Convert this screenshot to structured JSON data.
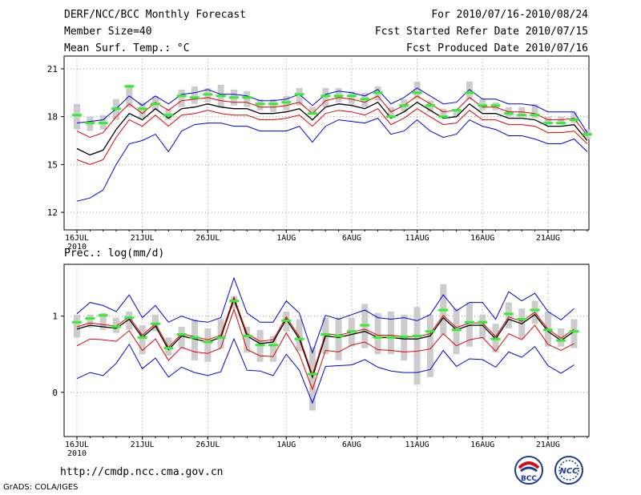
{
  "header": {
    "title": "DERF/NCC/BCC Monthly Forecast",
    "member_size": "Member Size=40",
    "variable": "Mean Surf. Temp.: °C",
    "forecast_period": "For 2010/07/16-2010/08/24",
    "fcst_started": "Fcst Started Refer Date 2010/07/15",
    "fcst_produced": "Fcst Produced Date 2010/07/16"
  },
  "panel2_title": "Prec.: log(mm/d)",
  "footer": {
    "url": "http://cmdp.ncc.cma.gov.cn",
    "grads": "GrADS: COLA/IGES",
    "logo1_text": "BCC",
    "logo2_text": "NCC"
  },
  "colors": {
    "mean": "#000000",
    "red_band": "#e00000",
    "blue_envelope": "#0000dd",
    "box": "#cccccc",
    "median": "#33ee33",
    "grid": "#999999"
  },
  "chart_data": [
    {
      "type": "line",
      "title": "Mean Surf. Temp.: °C",
      "x_tick_labels": [
        "16JUL",
        "21JUL",
        "26JUL",
        "1AUG",
        "6AUG",
        "11AUG",
        "16AUG",
        "21AUG"
      ],
      "x_year_label": "2010",
      "ylim": [
        10.9,
        21.8
      ],
      "y_ticks": [
        12,
        15,
        18,
        21
      ],
      "series": [
        {
          "name": "ensemble mean",
          "values": [
            16.0,
            15.6,
            15.9,
            17.2,
            18.2,
            17.8,
            18.5,
            17.9,
            18.5,
            18.6,
            18.8,
            18.6,
            18.5,
            18.5,
            18.2,
            18.2,
            18.3,
            18.5,
            17.8,
            18.6,
            18.8,
            18.7,
            18.5,
            18.9,
            17.9,
            18.3,
            18.9,
            18.4,
            17.9,
            18.0,
            18.8,
            18.2,
            18.2,
            17.9,
            17.9,
            17.8,
            17.4,
            17.4,
            17.5,
            16.5
          ]
        },
        {
          "name": "upper red",
          "values": [
            17.1,
            16.7,
            17.0,
            18.0,
            18.8,
            18.2,
            18.9,
            18.4,
            19.0,
            19.1,
            19.2,
            19.0,
            18.9,
            18.9,
            18.6,
            18.6,
            18.7,
            18.9,
            18.2,
            19.0,
            19.2,
            19.1,
            18.9,
            19.3,
            18.3,
            18.7,
            19.3,
            18.8,
            18.3,
            18.4,
            19.2,
            18.6,
            18.6,
            18.3,
            18.3,
            18.2,
            17.8,
            17.8,
            17.9,
            16.8
          ]
        },
        {
          "name": "lower red",
          "values": [
            15.3,
            15.0,
            15.3,
            16.7,
            17.8,
            17.4,
            18.1,
            17.4,
            18.1,
            18.2,
            18.4,
            18.2,
            18.1,
            18.1,
            17.8,
            17.8,
            17.9,
            18.1,
            17.4,
            18.2,
            18.4,
            18.3,
            18.1,
            18.5,
            17.5,
            17.9,
            18.5,
            18.0,
            17.5,
            17.6,
            18.4,
            17.8,
            17.8,
            17.5,
            17.5,
            17.4,
            17.0,
            17.0,
            17.1,
            16.3
          ]
        },
        {
          "name": "upper blue",
          "values": [
            17.6,
            17.7,
            17.8,
            18.5,
            19.3,
            18.7,
            19.3,
            18.8,
            19.4,
            19.5,
            19.7,
            19.4,
            19.4,
            19.3,
            19.0,
            19.0,
            19.1,
            19.4,
            18.7,
            19.4,
            19.6,
            19.5,
            19.3,
            19.7,
            18.8,
            19.2,
            19.8,
            19.3,
            18.8,
            18.9,
            19.7,
            19.1,
            19.1,
            18.8,
            18.8,
            18.7,
            18.3,
            18.3,
            18.3,
            17.0
          ]
        },
        {
          "name": "lower blue",
          "values": [
            12.7,
            12.9,
            13.4,
            15.0,
            16.3,
            16.5,
            16.9,
            15.8,
            17.1,
            17.5,
            17.6,
            17.6,
            17.4,
            17.4,
            17.1,
            17.1,
            17.1,
            17.4,
            16.4,
            17.4,
            17.8,
            17.7,
            17.6,
            17.9,
            16.9,
            17.1,
            17.8,
            17.1,
            16.7,
            16.9,
            17.8,
            17.4,
            17.2,
            16.8,
            16.8,
            16.6,
            16.3,
            16.3,
            16.6,
            15.8
          ]
        },
        {
          "name": "median",
          "values": [
            18.1,
            17.6,
            17.6,
            18.5,
            19.9,
            18.5,
            18.8,
            18.1,
            19.3,
            19.2,
            19.4,
            19.3,
            19.2,
            19.2,
            18.8,
            18.8,
            18.9,
            19.4,
            18.2,
            19.3,
            19.3,
            19.3,
            19.1,
            19.5,
            18.0,
            18.7,
            19.5,
            18.7,
            18.0,
            18.4,
            19.5,
            18.7,
            18.7,
            18.2,
            18.1,
            18.1,
            17.6,
            17.6,
            17.8,
            16.9
          ]
        }
      ],
      "boxes": {
        "low": [
          17.2,
          17.1,
          17.2,
          17.8,
          18.6,
          17.9,
          18.4,
          17.8,
          18.6,
          18.8,
          18.9,
          18.6,
          18.7,
          18.6,
          18.4,
          18.3,
          18.4,
          18.7,
          18.1,
          18.6,
          18.9,
          18.8,
          18.6,
          19.0,
          18.0,
          18.3,
          19.1,
          18.3,
          18.0,
          18.0,
          19.1,
          18.4,
          18.4,
          18.0,
          18.0,
          17.9,
          17.5,
          17.5,
          17.6,
          16.6
        ],
        "high": [
          18.8,
          18.0,
          18.1,
          19.1,
          20.0,
          18.9,
          19.3,
          18.5,
          19.7,
          19.9,
          19.8,
          20.0,
          19.7,
          19.6,
          19.1,
          19.1,
          19.3,
          19.8,
          18.6,
          19.8,
          19.8,
          19.6,
          19.5,
          19.9,
          18.6,
          19.1,
          20.2,
          19.0,
          18.5,
          18.5,
          20.2,
          19.1,
          18.9,
          18.6,
          18.6,
          18.8,
          18.0,
          18.0,
          18.3,
          17.2
        ]
      }
    },
    {
      "type": "line",
      "title": "Prec.: log(mm/d)",
      "x_tick_labels": [
        "16JUL",
        "21JUL",
        "26JUL",
        "1AUG",
        "6AUG",
        "11AUG",
        "16AUG",
        "21AUG"
      ],
      "x_year_label": "2010",
      "ylim": [
        -0.58,
        1.68
      ],
      "y_ticks": [
        0,
        1
      ],
      "series": [
        {
          "name": "ensemble mean",
          "values": [
            0.83,
            0.88,
            0.86,
            0.84,
            0.96,
            0.72,
            0.87,
            0.56,
            0.74,
            0.7,
            0.66,
            0.72,
            1.22,
            0.74,
            0.64,
            0.66,
            0.96,
            0.7,
            0.2,
            0.74,
            0.72,
            0.76,
            0.8,
            0.72,
            0.72,
            0.7,
            0.7,
            0.74,
            0.98,
            0.82,
            0.88,
            0.88,
            0.7,
            0.96,
            0.9,
            1.02,
            0.8,
            0.68,
            0.8
          ]
        },
        {
          "name": "upper red",
          "values": [
            0.86,
            0.91,
            0.89,
            0.87,
            0.99,
            0.75,
            0.9,
            0.59,
            0.77,
            0.73,
            0.69,
            0.75,
            1.25,
            0.77,
            0.67,
            0.69,
            0.99,
            0.73,
            0.23,
            0.77,
            0.75,
            0.79,
            0.83,
            0.75,
            0.75,
            0.73,
            0.73,
            0.77,
            1.01,
            0.85,
            0.91,
            0.91,
            0.73,
            0.99,
            0.93,
            1.05,
            0.83,
            0.71,
            0.83
          ]
        },
        {
          "name": "lower red",
          "values": [
            0.61,
            0.7,
            0.69,
            0.67,
            0.81,
            0.55,
            0.7,
            0.42,
            0.59,
            0.53,
            0.51,
            0.58,
            1.09,
            0.56,
            0.48,
            0.47,
            0.78,
            0.5,
            0.04,
            0.55,
            0.53,
            0.62,
            0.66,
            0.56,
            0.55,
            0.53,
            0.54,
            0.57,
            0.77,
            0.61,
            0.69,
            0.72,
            0.54,
            0.77,
            0.69,
            0.88,
            0.63,
            0.55,
            0.64
          ]
        },
        {
          "name": "upper blue",
          "values": [
            1.03,
            1.18,
            1.14,
            1.06,
            1.28,
            0.98,
            1.14,
            0.92,
            1.0,
            0.94,
            0.92,
            0.98,
            1.5,
            1.04,
            0.92,
            0.92,
            1.2,
            1.04,
            0.52,
            1.01,
            0.96,
            1.02,
            1.08,
            0.98,
            0.96,
            0.98,
            0.94,
            1.02,
            1.28,
            1.07,
            1.18,
            1.18,
            0.96,
            1.32,
            1.2,
            1.3,
            1.06,
            0.95,
            1.1
          ]
        },
        {
          "name": "lower blue",
          "values": [
            0.18,
            0.26,
            0.22,
            0.38,
            0.63,
            0.31,
            0.45,
            0.2,
            0.33,
            0.26,
            0.22,
            0.27,
            0.7,
            0.29,
            0.28,
            0.22,
            0.5,
            0.29,
            -0.14,
            0.34,
            0.35,
            0.36,
            0.43,
            0.33,
            0.28,
            0.26,
            0.26,
            0.3,
            0.55,
            0.34,
            0.44,
            0.43,
            0.33,
            0.53,
            0.46,
            0.6,
            0.35,
            0.25,
            0.36
          ]
        },
        {
          "name": "median",
          "values": [
            0.92,
            0.97,
            1.01,
            0.86,
            0.98,
            0.72,
            0.9,
            0.58,
            0.76,
            0.72,
            0.66,
            0.72,
            1.2,
            0.74,
            0.62,
            0.62,
            0.94,
            0.7,
            0.24,
            0.76,
            0.74,
            0.8,
            0.88,
            0.72,
            0.72,
            0.73,
            0.74,
            0.8,
            1.08,
            0.82,
            0.92,
            0.92,
            0.7,
            1.03,
            0.96,
            1.08,
            0.82,
            0.68,
            0.8
          ]
        }
      ],
      "boxes": {
        "low": [
          0.72,
          0.85,
          0.82,
          0.78,
          0.82,
          0.5,
          0.8,
          0.48,
          0.58,
          0.42,
          0.4,
          0.58,
          1.1,
          0.52,
          0.4,
          0.4,
          0.8,
          0.54,
          -0.24,
          0.5,
          0.42,
          0.6,
          0.58,
          0.5,
          0.5,
          0.42,
          0.1,
          0.2,
          0.76,
          0.5,
          0.6,
          0.7,
          0.52,
          0.84,
          0.7,
          0.9,
          0.6,
          0.6,
          0.58
        ],
        "high": [
          1.02,
          1.02,
          1.04,
          0.98,
          1.06,
          0.88,
          1.02,
          0.72,
          0.86,
          0.96,
          0.84,
          0.96,
          1.26,
          0.86,
          0.82,
          0.74,
          1.06,
          0.96,
          0.6,
          0.98,
          0.98,
          0.98,
          1.16,
          1.04,
          1.06,
          1.02,
          1.12,
          1.02,
          1.42,
          1.1,
          1.18,
          1.02,
          0.9,
          1.18,
          1.1,
          1.2,
          1.06,
          0.84,
          0.96
        ]
      }
    }
  ]
}
